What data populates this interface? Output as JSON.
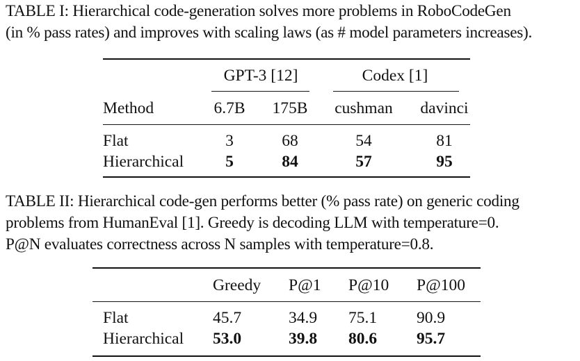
{
  "table1": {
    "caption": "TABLE I: Hierarchical code-generation solves more problems in RoboCodeGen (in % pass rates) and improves with scaling laws (as # model parameters increases).",
    "caption_lines": [
      "TABLE I: Hierarchical code-generation solves more problems in RoboCodeGen",
      "(in % pass rates) and improves with scaling laws (as # model parameters increases)."
    ],
    "group_headers": [
      "GPT-3 [12]",
      "Codex [1]"
    ],
    "method_header": "Method",
    "columns": [
      "6.7B",
      "175B",
      "cushman",
      "davinci"
    ],
    "rows": [
      {
        "method": "Flat",
        "values": [
          "3",
          "68",
          "54",
          "81"
        ],
        "bold": false
      },
      {
        "method": "Hierarchical",
        "values": [
          "5",
          "84",
          "57",
          "95"
        ],
        "bold": true
      }
    ]
  },
  "table2": {
    "caption": "TABLE II: Hierarchical code-gen performs better (% pass rate) on generic coding problems from HumanEval [1]. Greedy is decoding LLM with temperature=0. P@N evaluates correctness across N samples with temperature=0.8.",
    "caption_lines": [
      "TABLE II: Hierarchical code-gen performs better (% pass rate) on generic coding",
      "problems from HumanEval [1]. Greedy is decoding LLM with temperature=0.",
      "P@N evaluates correctness across N samples with temperature=0.8."
    ],
    "columns": [
      "Greedy",
      "P@1",
      "P@10",
      "P@100"
    ],
    "rows": [
      {
        "method": "Flat",
        "values": [
          "45.7",
          "34.9",
          "75.1",
          "90.9"
        ],
        "bold": false
      },
      {
        "method": "Hierarchical",
        "values": [
          "53.0",
          "39.8",
          "80.6",
          "95.7"
        ],
        "bold": true
      }
    ]
  }
}
